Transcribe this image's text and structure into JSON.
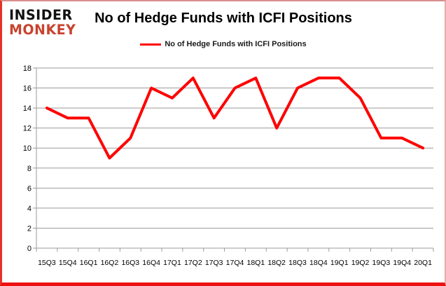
{
  "logo": {
    "line1": "INSIDER",
    "line2": "MONKEY",
    "accent_color": "#c8432f",
    "dark_color": "#111111"
  },
  "title": "No of Hedge Funds with ICFI Positions",
  "legend": {
    "label": "No of Hedge Funds with ICFI Positions",
    "marker_color": "#ff0000"
  },
  "frame": {
    "border_color": "#e53127"
  },
  "chart_data": {
    "type": "line",
    "title": "No of Hedge Funds with ICFI Positions",
    "categories": [
      "15Q3",
      "15Q4",
      "16Q1",
      "16Q2",
      "16Q3",
      "16Q4",
      "17Q1",
      "17Q2",
      "17Q3",
      "17Q4",
      "18Q1",
      "18Q2",
      "18Q3",
      "18Q4",
      "19Q1",
      "19Q2",
      "19Q3",
      "19Q4",
      "20Q1"
    ],
    "series": [
      {
        "name": "No of Hedge Funds with ICFI Positions",
        "values": [
          14,
          13,
          13,
          9,
          11,
          16,
          15,
          17,
          13,
          16,
          17,
          12,
          16,
          17,
          17,
          15,
          11,
          11,
          10
        ]
      }
    ],
    "xlabel": "",
    "ylabel": "",
    "ylim": [
      0,
      18
    ],
    "yticks": [
      0,
      2,
      4,
      6,
      8,
      10,
      12,
      14,
      16,
      18
    ],
    "grid": true,
    "legend_position": "top",
    "line_color": "#ff0000",
    "line_width": 4,
    "gridline_color": "#9b9b9b",
    "axis_color": "#9b9b9b",
    "label_color": "#000000"
  }
}
